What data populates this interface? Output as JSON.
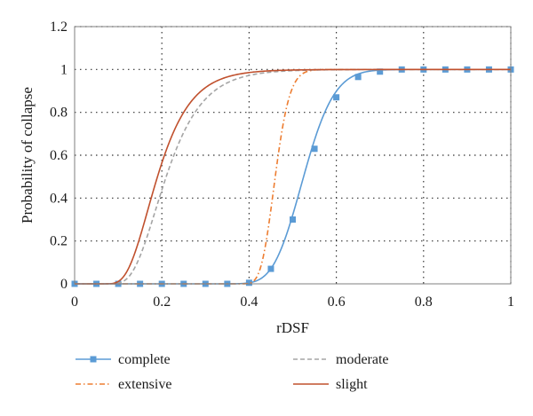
{
  "chart_data": {
    "type": "line",
    "title": "",
    "xlabel": "rDSF",
    "ylabel": "Probability of collapse",
    "xlim": [
      0,
      1
    ],
    "ylim": [
      0,
      1.2
    ],
    "x_ticks": [
      0,
      0.2,
      0.4,
      0.6,
      0.8,
      1
    ],
    "x_tick_labels": [
      "0",
      "0.2",
      "0.4",
      "0.6",
      "0.8",
      "1"
    ],
    "y_ticks": [
      0,
      0.2,
      0.4,
      0.6,
      0.8,
      1,
      1.2
    ],
    "y_tick_labels": [
      "0",
      "0.2",
      "0.4",
      "0.6",
      "0.8",
      "1",
      "1.2"
    ],
    "grid": true,
    "legend_position": "bottom",
    "series": [
      {
        "name": "complete",
        "color": "#5b9bd5",
        "style": "solid",
        "marker": "square",
        "x": [
          0,
          0.05,
          0.1,
          0.15,
          0.2,
          0.25,
          0.3,
          0.35,
          0.4,
          0.45,
          0.5,
          0.55,
          0.6,
          0.65,
          0.7,
          0.75,
          0.8,
          0.85,
          0.9,
          0.95,
          1
        ],
        "values": [
          0,
          0,
          0,
          0,
          0,
          0,
          0,
          0,
          0.005,
          0.07,
          0.3,
          0.63,
          0.87,
          0.965,
          0.99,
          1,
          1,
          1,
          1,
          1,
          1
        ],
        "curve": {
          "median": 0.525,
          "dispersion": 0.105
        }
      },
      {
        "name": "extensive",
        "color": "#ed7d31",
        "style": "dashdot",
        "marker": "none",
        "curve": {
          "median": 0.46,
          "dispersion": 0.145,
          "onset": 0.28
        }
      },
      {
        "name": "moderate",
        "color": "#a5a5a5",
        "style": "dashed",
        "marker": "none",
        "curve": {
          "median": 0.21,
          "dispersion": 0.4,
          "onset": 0.045
        }
      },
      {
        "name": "slight",
        "color": "#c0502d",
        "style": "solid",
        "marker": "none",
        "curve": {
          "median": 0.19,
          "dispersion": 0.4,
          "onset": 0.04
        }
      }
    ]
  }
}
